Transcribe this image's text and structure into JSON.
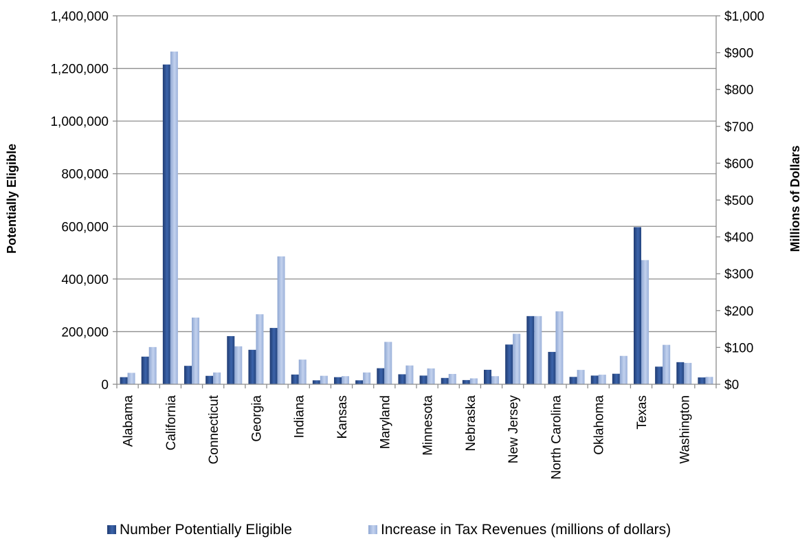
{
  "chart_data": {
    "type": "bar",
    "title": "",
    "ylabel": "Potentially Eligible",
    "ylabel_right": "Millions of Dollars",
    "ylim": [
      0,
      1400000
    ],
    "ylim_right": [
      0,
      1000
    ],
    "y_ticks": [
      "0",
      "200,000",
      "400,000",
      "600,000",
      "800,000",
      "1,000,000",
      "1,200,000",
      "1,400,000"
    ],
    "y_ticks_right": [
      "$0",
      "$100",
      "$200",
      "$300",
      "$400",
      "$500",
      "$600",
      "$700",
      "$800",
      "$900",
      "$1,000"
    ],
    "grid": true,
    "legend_position": "bottom",
    "categories": [
      "Alabama",
      "",
      "California",
      "",
      "Connecticut",
      "",
      "Georgia",
      "",
      "Indiana",
      "",
      "Kansas",
      "",
      "Maryland",
      "",
      "Minnesota",
      "",
      "Nebraska",
      "",
      "New Jersey",
      "",
      "North Carolina",
      "",
      "Oklahoma",
      "",
      "Texas",
      "",
      "Washington",
      ""
    ],
    "series": [
      {
        "name": "Number Potentially Eligible",
        "axis": "left",
        "color": "#2f5597",
        "values": [
          27000,
          105000,
          1215000,
          70000,
          32000,
          183000,
          131000,
          214000,
          37000,
          15000,
          27000,
          15000,
          61000,
          38000,
          33000,
          24000,
          16000,
          55000,
          151000,
          259000,
          123000,
          28000,
          33000,
          40000,
          597000,
          67000,
          84000,
          26000
        ]
      },
      {
        "name": "Increase in Tax Revenues (millions of dollars)",
        "axis": "right",
        "color": "#a9bde2",
        "values": [
          31,
          101,
          903,
          181,
          32,
          103,
          190,
          347,
          67,
          23,
          22,
          32,
          115,
          51,
          43,
          28,
          16,
          22,
          137,
          185,
          198,
          39,
          26,
          77,
          337,
          107,
          58,
          20
        ]
      }
    ]
  }
}
